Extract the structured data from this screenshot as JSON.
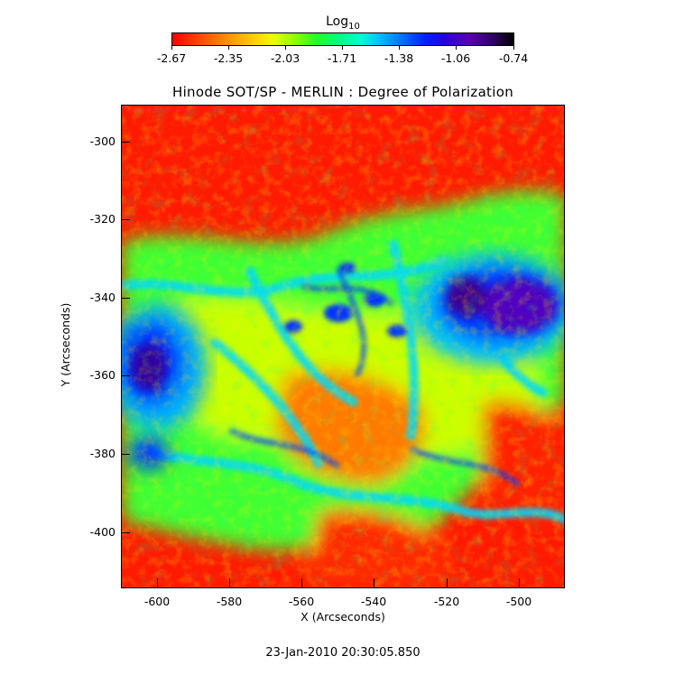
{
  "colorbar": {
    "title": "Log",
    "title_sub": "10",
    "tick_labels": [
      "-2.67",
      "-2.35",
      "-2.03",
      "-1.71",
      "-1.38",
      "-1.06",
      "-0.74"
    ]
  },
  "plot": {
    "title": "Hinode SOT/SP - MERLIN : Degree of Polarization",
    "xlabel": "X (Arcseconds)",
    "ylabel": "Y (Arcseconds)",
    "x_tick_labels": [
      "-600",
      "-580",
      "-560",
      "-540",
      "-520",
      "-500"
    ],
    "y_tick_labels": [
      "-300",
      "-320",
      "-340",
      "-360",
      "-380",
      "-400"
    ],
    "timestamp": "23-Jan-2010 20:30:05.850"
  },
  "colors": {
    "low": "#ff0000",
    "mid": "#00ff60",
    "high": "#0000ff",
    "max": "#000000"
  }
}
